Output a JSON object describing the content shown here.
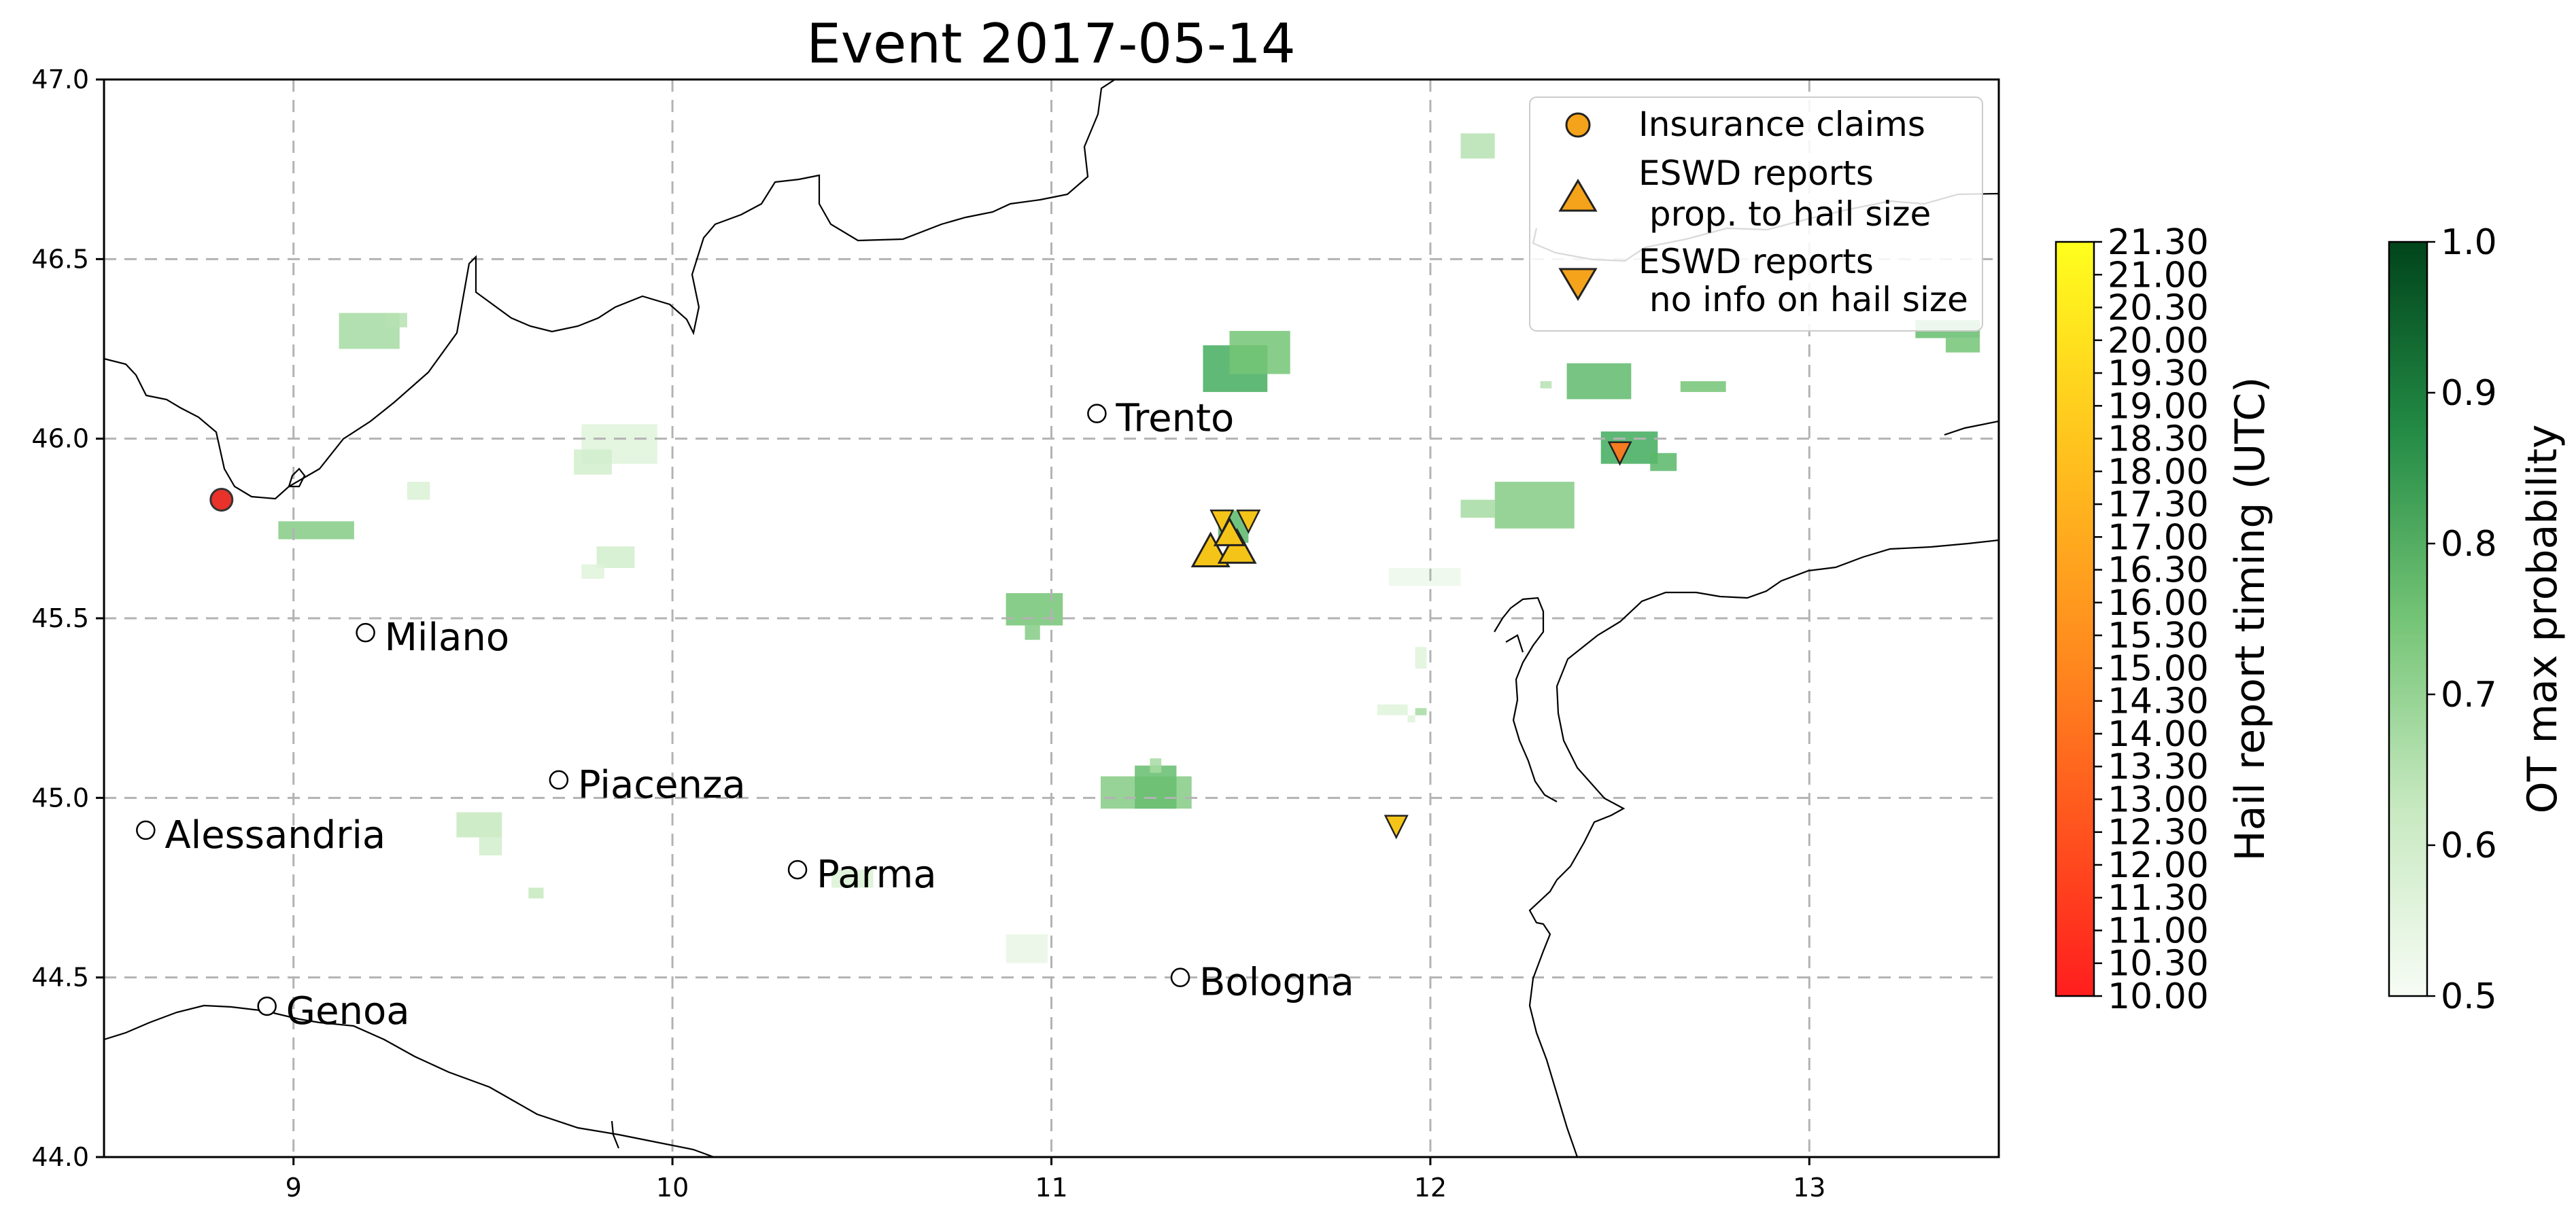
{
  "map": {
    "title": "Event 2017-05-14",
    "extent": {
      "lon": [
        8.5,
        13.5
      ],
      "lat": [
        44.0,
        47.0
      ]
    },
    "x_ticks": [
      "9",
      "10",
      "11",
      "12",
      "13"
    ],
    "x_tick_values": [
      9,
      10,
      11,
      12,
      13
    ],
    "y_ticks": [
      "44.0",
      "44.5",
      "45.0",
      "45.5",
      "46.0",
      "46.5",
      "47.0"
    ],
    "y_tick_values": [
      44.0,
      44.5,
      45.0,
      45.5,
      46.0,
      46.5,
      47.0
    ],
    "grid": true,
    "cities": [
      {
        "name": "Trento",
        "lon": 11.12,
        "lat": 46.07
      },
      {
        "name": "Milano",
        "lon": 9.19,
        "lat": 45.46
      },
      {
        "name": "Piacenza",
        "lon": 9.7,
        "lat": 45.05
      },
      {
        "name": "Alessandria",
        "lon": 8.61,
        "lat": 44.91
      },
      {
        "name": "Parma",
        "lon": 10.33,
        "lat": 44.8
      },
      {
        "name": "Bologna",
        "lon": 11.34,
        "lat": 44.5
      },
      {
        "name": "Genoa",
        "lon": 8.93,
        "lat": 44.42
      }
    ],
    "insurance_claims": [
      {
        "lon": 8.81,
        "lat": 45.83,
        "color": "#e8322a"
      }
    ],
    "eswd_sized": [
      {
        "lon": 11.42,
        "lat": 45.69,
        "size": 1.0
      },
      {
        "lon": 11.49,
        "lat": 45.7,
        "size": 1.0
      },
      {
        "lon": 11.47,
        "lat": 45.74,
        "size": 0.8
      }
    ],
    "eswd_nosize": [
      {
        "lon": 11.45,
        "lat": 45.77
      },
      {
        "lon": 11.52,
        "lat": 45.77
      },
      {
        "lon": 12.5,
        "lat": 45.96,
        "color": "#f47b20"
      },
      {
        "lon": 11.91,
        "lat": 44.92
      }
    ],
    "ot_cells": [
      {
        "lon": [
          9.12,
          9.28
        ],
        "lat": [
          46.25,
          46.35
        ],
        "p": 0.64
      },
      {
        "lon": [
          9.24,
          9.3
        ],
        "lat": [
          46.31,
          46.35
        ],
        "p": 0.62
      },
      {
        "lon": [
          8.96,
          9.16
        ],
        "lat": [
          45.72,
          45.77
        ],
        "p": 0.68
      },
      {
        "lon": [
          9.3,
          9.36
        ],
        "lat": [
          45.83,
          45.88
        ],
        "p": 0.56
      },
      {
        "lon": [
          9.76,
          9.96
        ],
        "lat": [
          45.93,
          46.04
        ],
        "p": 0.55
      },
      {
        "lon": [
          9.74,
          9.84
        ],
        "lat": [
          45.9,
          45.97
        ],
        "p": 0.58
      },
      {
        "lon": [
          9.8,
          9.9
        ],
        "lat": [
          45.64,
          45.7
        ],
        "p": 0.58
      },
      {
        "lon": [
          9.76,
          9.82
        ],
        "lat": [
          45.61,
          45.65
        ],
        "p": 0.55
      },
      {
        "lon": [
          9.43,
          9.55
        ],
        "lat": [
          44.89,
          44.96
        ],
        "p": 0.6
      },
      {
        "lon": [
          9.49,
          9.55
        ],
        "lat": [
          44.84,
          44.89
        ],
        "p": 0.58
      },
      {
        "lon": [
          9.62,
          9.66
        ],
        "lat": [
          44.72,
          44.75
        ],
        "p": 0.6
      },
      {
        "lon": [
          10.42,
          10.53
        ],
        "lat": [
          44.75,
          44.8
        ],
        "p": 0.56
      },
      {
        "lon": [
          10.88,
          11.03
        ],
        "lat": [
          45.48,
          45.57
        ],
        "p": 0.7
      },
      {
        "lon": [
          10.93,
          10.97
        ],
        "lat": [
          45.44,
          45.48
        ],
        "p": 0.68
      },
      {
        "lon": [
          10.88,
          10.99
        ],
        "lat": [
          44.54,
          44.62
        ],
        "p": 0.53
      },
      {
        "lon": [
          11.13,
          11.37
        ],
        "lat": [
          44.97,
          45.06
        ],
        "p": 0.68
      },
      {
        "lon": [
          11.22,
          11.33
        ],
        "lat": [
          44.97,
          45.09
        ],
        "p": 0.74
      },
      {
        "lon": [
          11.26,
          11.29
        ],
        "lat": [
          45.07,
          45.11
        ],
        "p": 0.64
      },
      {
        "lon": [
          11.4,
          11.57
        ],
        "lat": [
          46.13,
          46.26
        ],
        "p": 0.84
      },
      {
        "lon": [
          11.47,
          11.63
        ],
        "lat": [
          46.18,
          46.3
        ],
        "p": 0.7
      },
      {
        "lon": [
          11.44,
          11.52
        ],
        "lat": [
          45.71,
          45.8
        ],
        "p": 0.78
      },
      {
        "lon": [
          11.89,
          12.08
        ],
        "lat": [
          45.59,
          45.64
        ],
        "p": 0.52
      },
      {
        "lon": [
          11.96,
          11.99
        ],
        "lat": [
          45.23,
          45.25
        ],
        "p": 0.64
      },
      {
        "lon": [
          11.86,
          11.94
        ],
        "lat": [
          45.23,
          45.26
        ],
        "p": 0.55
      },
      {
        "lon": [
          11.96,
          11.99
        ],
        "lat": [
          45.36,
          45.42
        ],
        "p": 0.55
      },
      {
        "lon": [
          12.17,
          12.38
        ],
        "lat": [
          45.75,
          45.88
        ],
        "p": 0.68
      },
      {
        "lon": [
          12.08,
          12.17
        ],
        "lat": [
          45.78,
          45.83
        ],
        "p": 0.64
      },
      {
        "lon": [
          12.36,
          12.53
        ],
        "lat": [
          46.11,
          46.21
        ],
        "p": 0.76
      },
      {
        "lon": [
          12.66,
          12.78
        ],
        "lat": [
          46.13,
          46.16
        ],
        "p": 0.7
      },
      {
        "lon": [
          12.45,
          12.6
        ],
        "lat": [
          45.93,
          46.02
        ],
        "p": 0.85
      },
      {
        "lon": [
          12.58,
          12.65
        ],
        "lat": [
          45.91,
          45.96
        ],
        "p": 0.78
      },
      {
        "lon": [
          12.08,
          12.17
        ],
        "lat": [
          46.78,
          46.85
        ],
        "p": 0.62
      },
      {
        "lon": [
          13.28,
          13.45
        ],
        "lat": [
          46.28,
          46.33
        ],
        "p": 0.74
      },
      {
        "lon": [
          13.36,
          13.45
        ],
        "lat": [
          46.24,
          46.28
        ],
        "p": 0.7
      },
      {
        "lon": [
          12.29,
          12.32
        ],
        "lat": [
          46.14,
          46.16
        ],
        "p": 0.62
      },
      {
        "lon": [
          11.94,
          11.96
        ],
        "lat": [
          45.21,
          45.23
        ],
        "p": 0.55
      }
    ],
    "coast_color": "#000000",
    "grid_color": "#b3b3b3"
  },
  "legend": {
    "items": [
      {
        "marker": "circle",
        "label_lines": [
          "Insurance claims"
        ],
        "color": "#f5a31a"
      },
      {
        "marker": "triangle-up",
        "label_lines": [
          "ESWD reports",
          " prop. to hail size"
        ],
        "color": "#f5a31a"
      },
      {
        "marker": "triangle-down",
        "label_lines": [
          "ESWD reports",
          " no info on hail size"
        ],
        "color": "#f5a31a"
      }
    ]
  },
  "colorbar_hail": {
    "label": "Hail report timing (UTC)",
    "ticks": [
      "10.00",
      "10.30",
      "11.00",
      "11.30",
      "12.00",
      "12.30",
      "13.00",
      "13.30",
      "14.00",
      "14.30",
      "15.00",
      "15.30",
      "16.00",
      "16.30",
      "17.00",
      "17.30",
      "18.00",
      "18.30",
      "19.00",
      "19.30",
      "20.00",
      "20.30",
      "21.00",
      "21.30"
    ],
    "colors": [
      "#ff1e1e",
      "#ff9a1e",
      "#ffde1e",
      "#ffff1e"
    ]
  },
  "colorbar_ot": {
    "label": "OT max probability",
    "ticks": [
      "0.5",
      "0.6",
      "0.7",
      "0.8",
      "0.9",
      "1.0"
    ],
    "colors": [
      "#f7fcf5",
      "#c7e9c0",
      "#74c476",
      "#238b45",
      "#00441b"
    ]
  }
}
